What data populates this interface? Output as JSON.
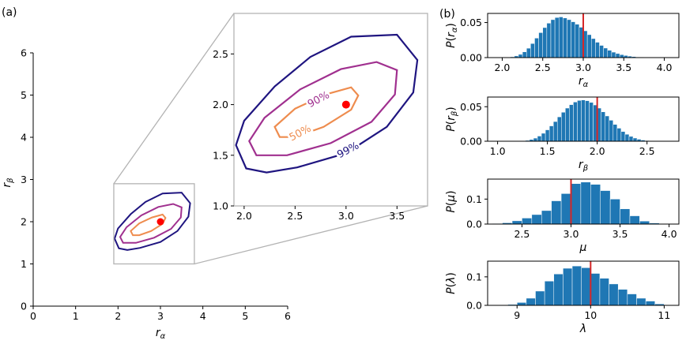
{
  "panel_labels": {
    "a": "(a)",
    "b": "(b)"
  },
  "colors": {
    "c99": "#1f1580",
    "c90": "#a0308f",
    "c50": "#ee8c4e",
    "point": "#ff0000",
    "bar": "#1f77b4",
    "bar_edge": "#ffffff",
    "truth": "#d62728",
    "zoom_box": "#b3b3b3"
  },
  "chart_data": [
    {
      "type": "contour",
      "id": "main",
      "xlabel": "r_α",
      "ylabel": "r_β",
      "xlim": [
        0,
        6
      ],
      "ylim": [
        0,
        6
      ],
      "xticks": [
        0,
        1,
        2,
        3,
        4,
        5,
        6
      ],
      "yticks": [
        0,
        1,
        2,
        3,
        4,
        5,
        6
      ],
      "zoom_region": {
        "x": [
          1.9,
          3.8
        ],
        "y": [
          1.0,
          2.9
        ]
      }
    },
    {
      "type": "contour",
      "id": "inset",
      "xlim": [
        1.9,
        3.8
      ],
      "ylim": [
        1.0,
        2.9
      ],
      "xticks": [
        2.0,
        2.5,
        3.0,
        3.5
      ],
      "xtick_labels": [
        "2.0",
        "2.5",
        "3.0",
        "3.5"
      ],
      "yticks": [
        1.0,
        1.5,
        2.0,
        2.5
      ],
      "ytick_labels": [
        "1.0",
        "1.5",
        "2.0",
        "2.5"
      ],
      "true_point": [
        3.0,
        2.0
      ],
      "levels": [
        {
          "label": "99%",
          "color": "#1f1580",
          "points": [
            [
              2.02,
              1.37
            ],
            [
              1.92,
              1.6
            ],
            [
              2.0,
              1.84
            ],
            [
              2.3,
              2.18
            ],
            [
              2.65,
              2.47
            ],
            [
              3.05,
              2.67
            ],
            [
              3.5,
              2.69
            ],
            [
              3.7,
              2.44
            ],
            [
              3.66,
              2.12
            ],
            [
              3.4,
              1.78
            ],
            [
              3.0,
              1.52
            ],
            [
              2.52,
              1.38
            ],
            [
              2.22,
              1.33
            ],
            [
              2.02,
              1.37
            ]
          ]
        },
        {
          "label": "90%",
          "color": "#a0308f",
          "points": [
            [
              2.12,
              1.5
            ],
            [
              2.05,
              1.64
            ],
            [
              2.2,
              1.87
            ],
            [
              2.55,
              2.15
            ],
            [
              2.95,
              2.35
            ],
            [
              3.3,
              2.42
            ],
            [
              3.5,
              2.34
            ],
            [
              3.48,
              2.1
            ],
            [
              3.25,
              1.83
            ],
            [
              2.85,
              1.62
            ],
            [
              2.42,
              1.5
            ],
            [
              2.12,
              1.5
            ]
          ]
        },
        {
          "label": "50%",
          "color": "#ee8c4e",
          "points": [
            [
              2.35,
              1.68
            ],
            [
              2.3,
              1.78
            ],
            [
              2.5,
              1.96
            ],
            [
              2.8,
              2.1
            ],
            [
              3.05,
              2.17
            ],
            [
              3.12,
              2.09
            ],
            [
              3.05,
              1.95
            ],
            [
              2.78,
              1.78
            ],
            [
              2.5,
              1.68
            ],
            [
              2.35,
              1.68
            ]
          ]
        }
      ],
      "contour_labels": [
        {
          "text": "99%",
          "x": 3.02,
          "y": 1.55,
          "rotate": -28
        },
        {
          "text": "90%",
          "x": 2.73,
          "y": 2.05,
          "rotate": -28
        },
        {
          "text": "50%",
          "x": 2.55,
          "y": 1.72,
          "rotate": -28
        }
      ]
    },
    {
      "type": "bar",
      "id": "hist_ralpha",
      "xlabel": "r_α",
      "ylabel": "P(r_α)",
      "xlim": [
        1.82,
        4.18
      ],
      "ylim": [
        0,
        0.063
      ],
      "xticks": [
        2.0,
        2.5,
        3.0,
        3.5,
        4.0
      ],
      "xtick_labels": [
        "2.0",
        "2.5",
        "3.0",
        "3.5",
        "4.0"
      ],
      "yticks": [
        0,
        0.05
      ],
      "ytick_labels": [
        "0.00",
        "0.05"
      ],
      "truth": 3.0,
      "bin_width": 0.05,
      "bin_centers": [
        2.025,
        2.075,
        2.125,
        2.175,
        2.225,
        2.275,
        2.325,
        2.375,
        2.425,
        2.475,
        2.525,
        2.575,
        2.625,
        2.675,
        2.725,
        2.775,
        2.825,
        2.875,
        2.925,
        2.975,
        3.025,
        3.075,
        3.125,
        3.175,
        3.225,
        3.275,
        3.325,
        3.375,
        3.425,
        3.475,
        3.525,
        3.575,
        3.625,
        3.675,
        3.725,
        3.775,
        3.825,
        3.875,
        3.925,
        3.975
      ],
      "values": [
        0.0002,
        0.0005,
        0.0011,
        0.0024,
        0.0046,
        0.0082,
        0.0134,
        0.0201,
        0.0278,
        0.0356,
        0.0428,
        0.0491,
        0.0541,
        0.0572,
        0.058,
        0.0565,
        0.0541,
        0.0511,
        0.0476,
        0.0433,
        0.0382,
        0.0327,
        0.0271,
        0.0219,
        0.0174,
        0.0136,
        0.0104,
        0.0078,
        0.0058,
        0.0042,
        0.003,
        0.0021,
        0.0014,
        0.0009,
        0.0006,
        0.0004,
        0.0002,
        0.0001,
        7e-05,
        4e-05
      ]
    },
    {
      "type": "bar",
      "id": "hist_rbeta",
      "xlabel": "r_β",
      "ylabel": "P(r_β)",
      "xlim": [
        0.9,
        2.82
      ],
      "ylim": [
        0,
        0.064
      ],
      "xticks": [
        1.0,
        1.5,
        2.0,
        2.5
      ],
      "xtick_labels": [
        "1.0",
        "1.5",
        "2.0",
        "2.5"
      ],
      "yticks": [
        0,
        0.05
      ],
      "ytick_labels": [
        "0.00",
        "0.05"
      ],
      "truth": 2.0,
      "bin_width": 0.04,
      "bin_centers": [
        1.22,
        1.26,
        1.3,
        1.34,
        1.38,
        1.42,
        1.46,
        1.5,
        1.54,
        1.58,
        1.62,
        1.66,
        1.7,
        1.74,
        1.78,
        1.82,
        1.86,
        1.9,
        1.94,
        1.98,
        2.02,
        2.06,
        2.1,
        2.14,
        2.18,
        2.22,
        2.26,
        2.3,
        2.34,
        2.38,
        2.42,
        2.46,
        2.5,
        2.54,
        2.58
      ],
      "values": [
        0.0002,
        0.0005,
        0.0012,
        0.0025,
        0.0045,
        0.0075,
        0.0115,
        0.0165,
        0.0222,
        0.0285,
        0.0353,
        0.042,
        0.048,
        0.053,
        0.0568,
        0.0591,
        0.0598,
        0.0587,
        0.0562,
        0.0525,
        0.048,
        0.0426,
        0.0366,
        0.0304,
        0.0244,
        0.0189,
        0.0141,
        0.0101,
        0.007,
        0.0046,
        0.0029,
        0.0017,
        0.001,
        0.0005,
        0.0002
      ]
    },
    {
      "type": "bar",
      "id": "hist_mu",
      "xlabel": "μ",
      "ylabel": "P(μ)",
      "xlim": [
        2.15,
        4.1
      ],
      "ylim": [
        0,
        0.18
      ],
      "xticks": [
        2.5,
        3.0,
        3.5,
        4.0
      ],
      "xtick_labels": [
        "2.5",
        "3.0",
        "3.5",
        "4.0"
      ],
      "yticks": [
        0,
        0.1
      ],
      "ytick_labels": [
        "0.0",
        "0.1"
      ],
      "truth": 3.0,
      "bin_width": 0.1,
      "bin_centers": [
        2.25,
        2.35,
        2.45,
        2.55,
        2.65,
        2.75,
        2.85,
        2.95,
        3.05,
        3.15,
        3.25,
        3.35,
        3.45,
        3.55,
        3.65,
        3.75,
        3.85
      ],
      "values": [
        0.002,
        0.005,
        0.013,
        0.024,
        0.038,
        0.054,
        0.093,
        0.122,
        0.162,
        0.168,
        0.159,
        0.134,
        0.1,
        0.061,
        0.033,
        0.012,
        0.004
      ]
    },
    {
      "type": "bar",
      "id": "hist_lambda",
      "xlabel": "λ",
      "ylabel": "P(λ)",
      "xlim": [
        8.6,
        11.2
      ],
      "ylim": [
        0,
        0.155
      ],
      "xticks": [
        9,
        10,
        11
      ],
      "xtick_labels": [
        "9",
        "10",
        "11"
      ],
      "yticks": [
        0,
        0.1
      ],
      "ytick_labels": [
        "0.0",
        "0.1"
      ],
      "truth": 10.0,
      "bin_width": 0.125,
      "bin_centers": [
        8.9375,
        9.0625,
        9.1875,
        9.3125,
        9.4375,
        9.5625,
        9.6875,
        9.8125,
        9.9375,
        10.0625,
        10.1875,
        10.3125,
        10.4375,
        10.5625,
        10.6875,
        10.8125,
        10.9375
      ],
      "values": [
        0.003,
        0.01,
        0.025,
        0.05,
        0.085,
        0.11,
        0.13,
        0.138,
        0.132,
        0.112,
        0.095,
        0.075,
        0.056,
        0.04,
        0.025,
        0.015,
        0.005
      ]
    }
  ]
}
